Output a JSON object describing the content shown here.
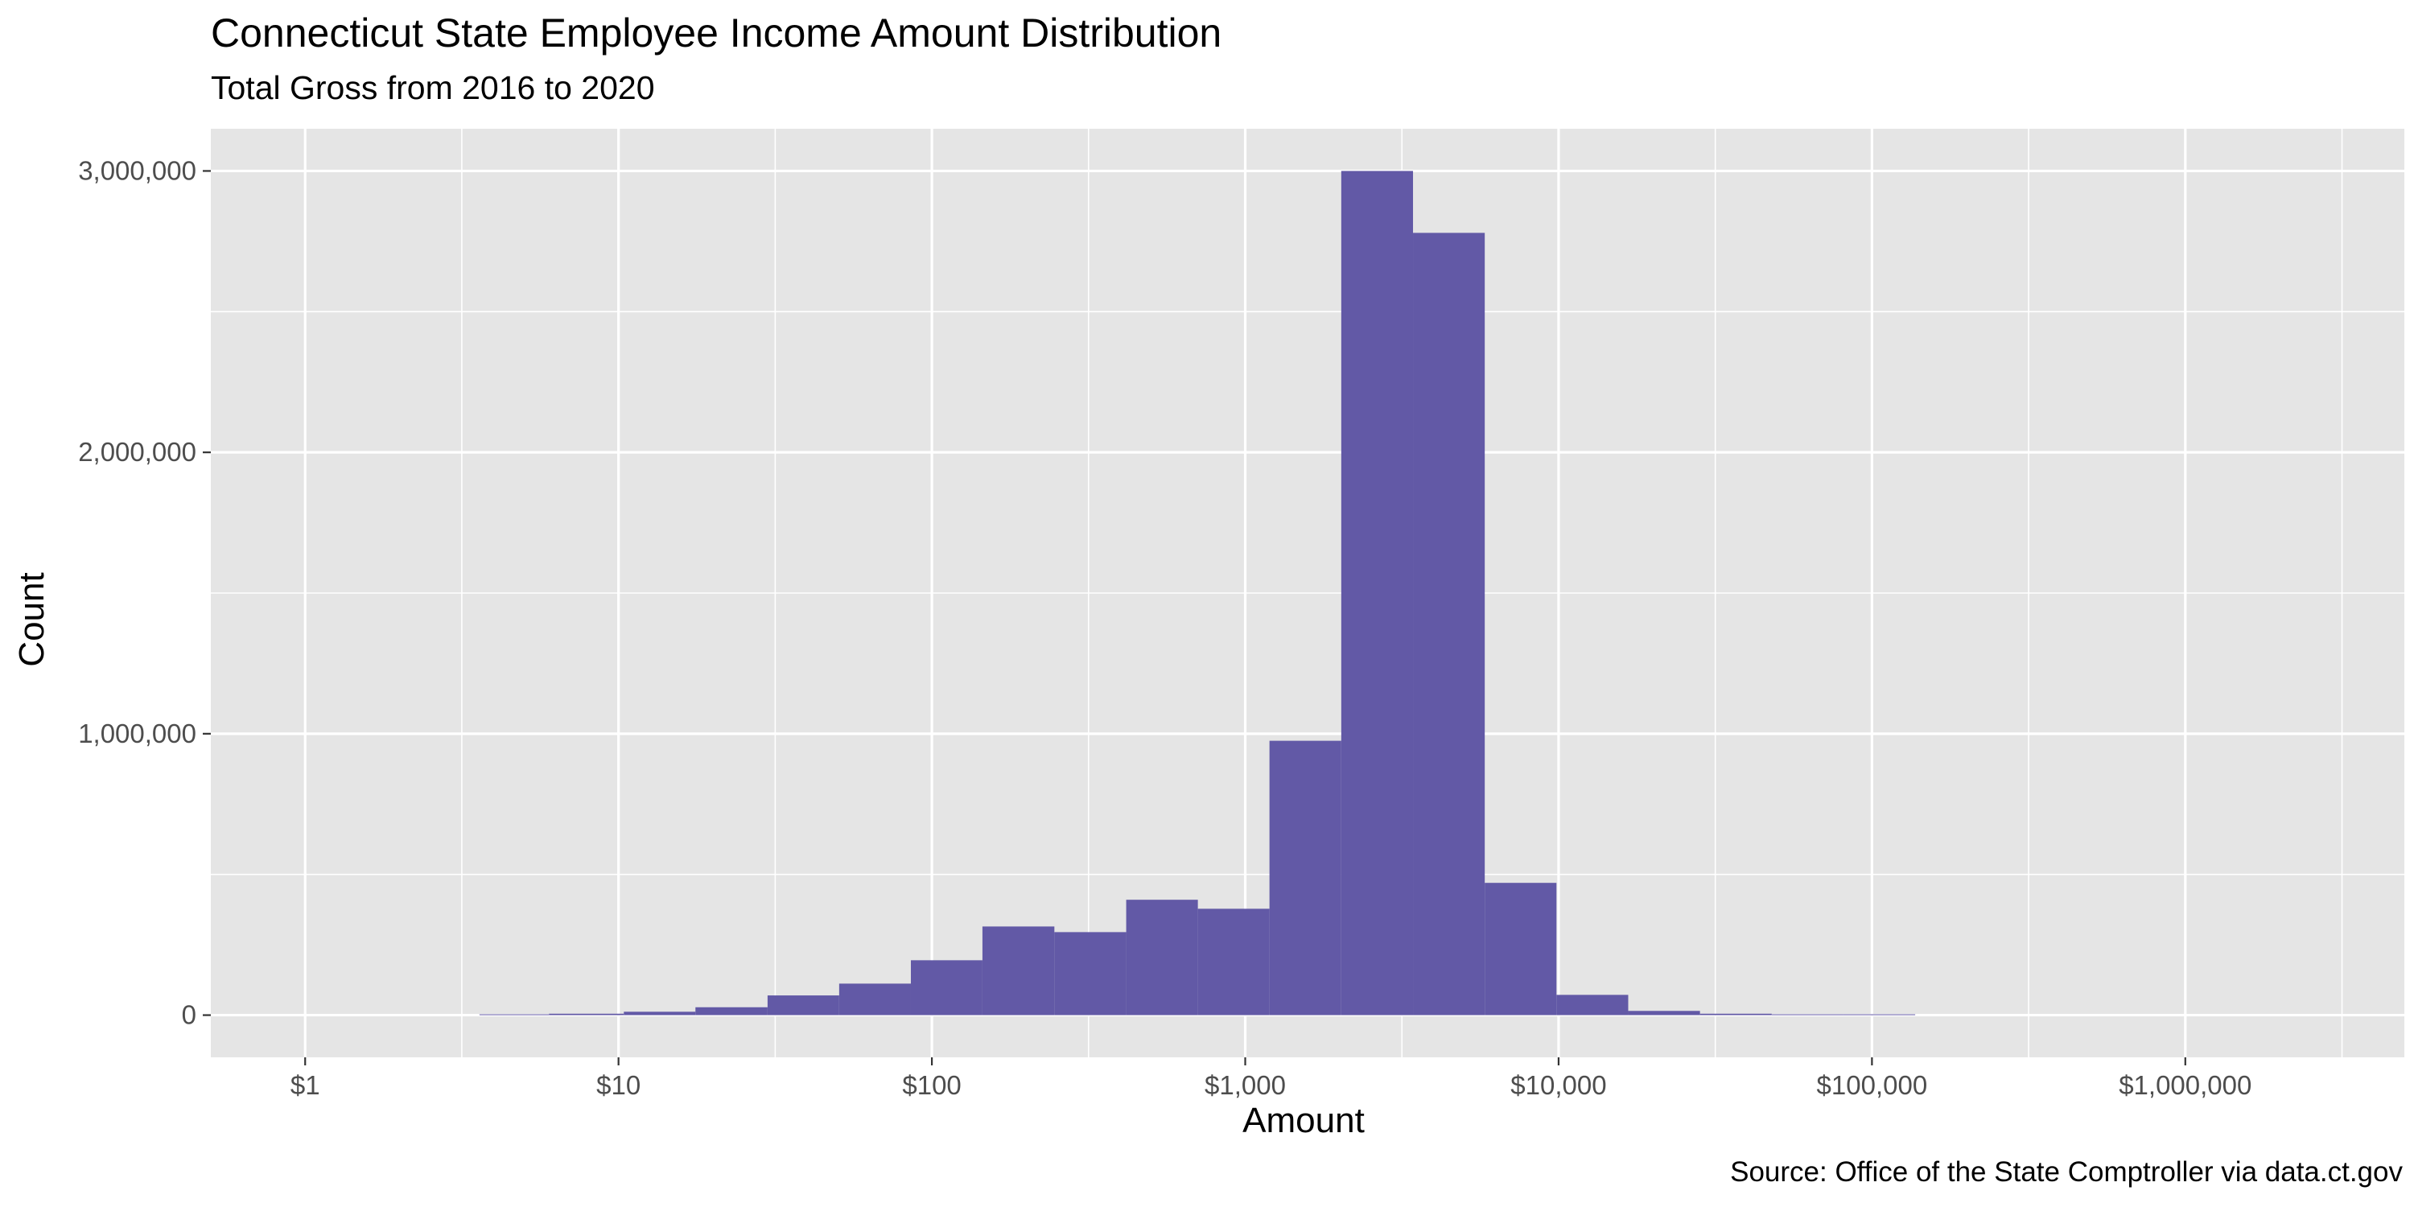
{
  "chart_data": {
    "type": "bar",
    "title": "Connecticut State Employee Income Amount Distribution",
    "subtitle": "Total Gross from 2016 to 2020",
    "caption": "Source: Office of the State Comptroller via data.ct.gov",
    "xlabel": "Amount",
    "ylabel": "Count",
    "x_scale": "log10",
    "xlim": [
      0.5,
      5000000
    ],
    "ylim": [
      -150000,
      3150000
    ],
    "x_ticks": [
      {
        "value": 1,
        "label": "$1"
      },
      {
        "value": 10,
        "label": "$10"
      },
      {
        "value": 100,
        "label": "$100"
      },
      {
        "value": 1000,
        "label": "$1,000"
      },
      {
        "value": 10000,
        "label": "$10,000"
      },
      {
        "value": 100000,
        "label": "$100,000"
      },
      {
        "value": 1000000,
        "label": "$1,000,000"
      }
    ],
    "y_ticks": [
      {
        "value": 0,
        "label": "0"
      },
      {
        "value": 1000000,
        "label": "1,000,000"
      },
      {
        "value": 2000000,
        "label": "2,000,000"
      },
      {
        "value": 3000000,
        "label": "3,000,000"
      }
    ],
    "grid": true,
    "bar_color": "#6259a6",
    "panel_color": "#e5e5e5",
    "bins": [
      {
        "from": 3.6,
        "to": 6.0,
        "count": 2000
      },
      {
        "from": 6.0,
        "to": 10.4,
        "count": 5000
      },
      {
        "from": 10.4,
        "to": 17.6,
        "count": 12000
      },
      {
        "from": 17.6,
        "to": 29.9,
        "count": 28000
      },
      {
        "from": 29.9,
        "to": 50.6,
        "count": 70000
      },
      {
        "from": 50.6,
        "to": 85.7,
        "count": 112000
      },
      {
        "from": 85.7,
        "to": 145,
        "count": 195000
      },
      {
        "from": 145,
        "to": 246,
        "count": 315000
      },
      {
        "from": 246,
        "to": 417,
        "count": 295000
      },
      {
        "from": 417,
        "to": 706,
        "count": 410000
      },
      {
        "from": 706,
        "to": 1195,
        "count": 378000
      },
      {
        "from": 1195,
        "to": 2025,
        "count": 975000
      },
      {
        "from": 2025,
        "to": 3431,
        "count": 3000000
      },
      {
        "from": 3431,
        "to": 5812,
        "count": 2780000
      },
      {
        "from": 5812,
        "to": 9845,
        "count": 470000
      },
      {
        "from": 9845,
        "to": 16680,
        "count": 72000
      },
      {
        "from": 16680,
        "to": 28260,
        "count": 15000
      },
      {
        "from": 28260,
        "to": 47880,
        "count": 5000
      },
      {
        "from": 47880,
        "to": 81110,
        "count": 2000
      },
      {
        "from": 81110,
        "to": 137400,
        "count": 1000
      }
    ]
  }
}
